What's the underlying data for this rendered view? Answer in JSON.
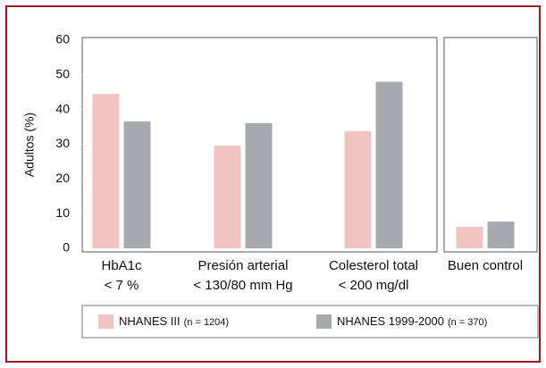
{
  "chart_data": [
    {
      "type": "bar",
      "ylabel": "Adultos (%)",
      "categories": [
        [
          "HbA1c",
          "< 7 %"
        ],
        [
          "Presión arterial",
          "< 130/80 mm Hg"
        ],
        [
          "Colesterol total",
          "< 200 mg/dl"
        ]
      ],
      "series": [
        {
          "name": "NHANES III",
          "sample": "(n = 1204)",
          "color": "#f0c4c0",
          "values": [
            44.5,
            29.6,
            33.8
          ]
        },
        {
          "name": "NHANES 1999-2000",
          "sample": "(n = 370)",
          "color": "#a7a9ac",
          "values": [
            36.6,
            36.1,
            48
          ]
        }
      ],
      "ylim": [
        0,
        60
      ],
      "yticks": [
        0,
        10,
        20,
        30,
        40,
        50,
        60
      ]
    },
    {
      "type": "bar",
      "categories": [
        [
          "Buen control"
        ]
      ],
      "series": [
        {
          "color": "#f0c4c0",
          "values": [
            6.2
          ]
        },
        {
          "color": "#a7a9ac",
          "values": [
            7.7
          ]
        }
      ],
      "ylim": [
        0,
        60
      ]
    }
  ]
}
